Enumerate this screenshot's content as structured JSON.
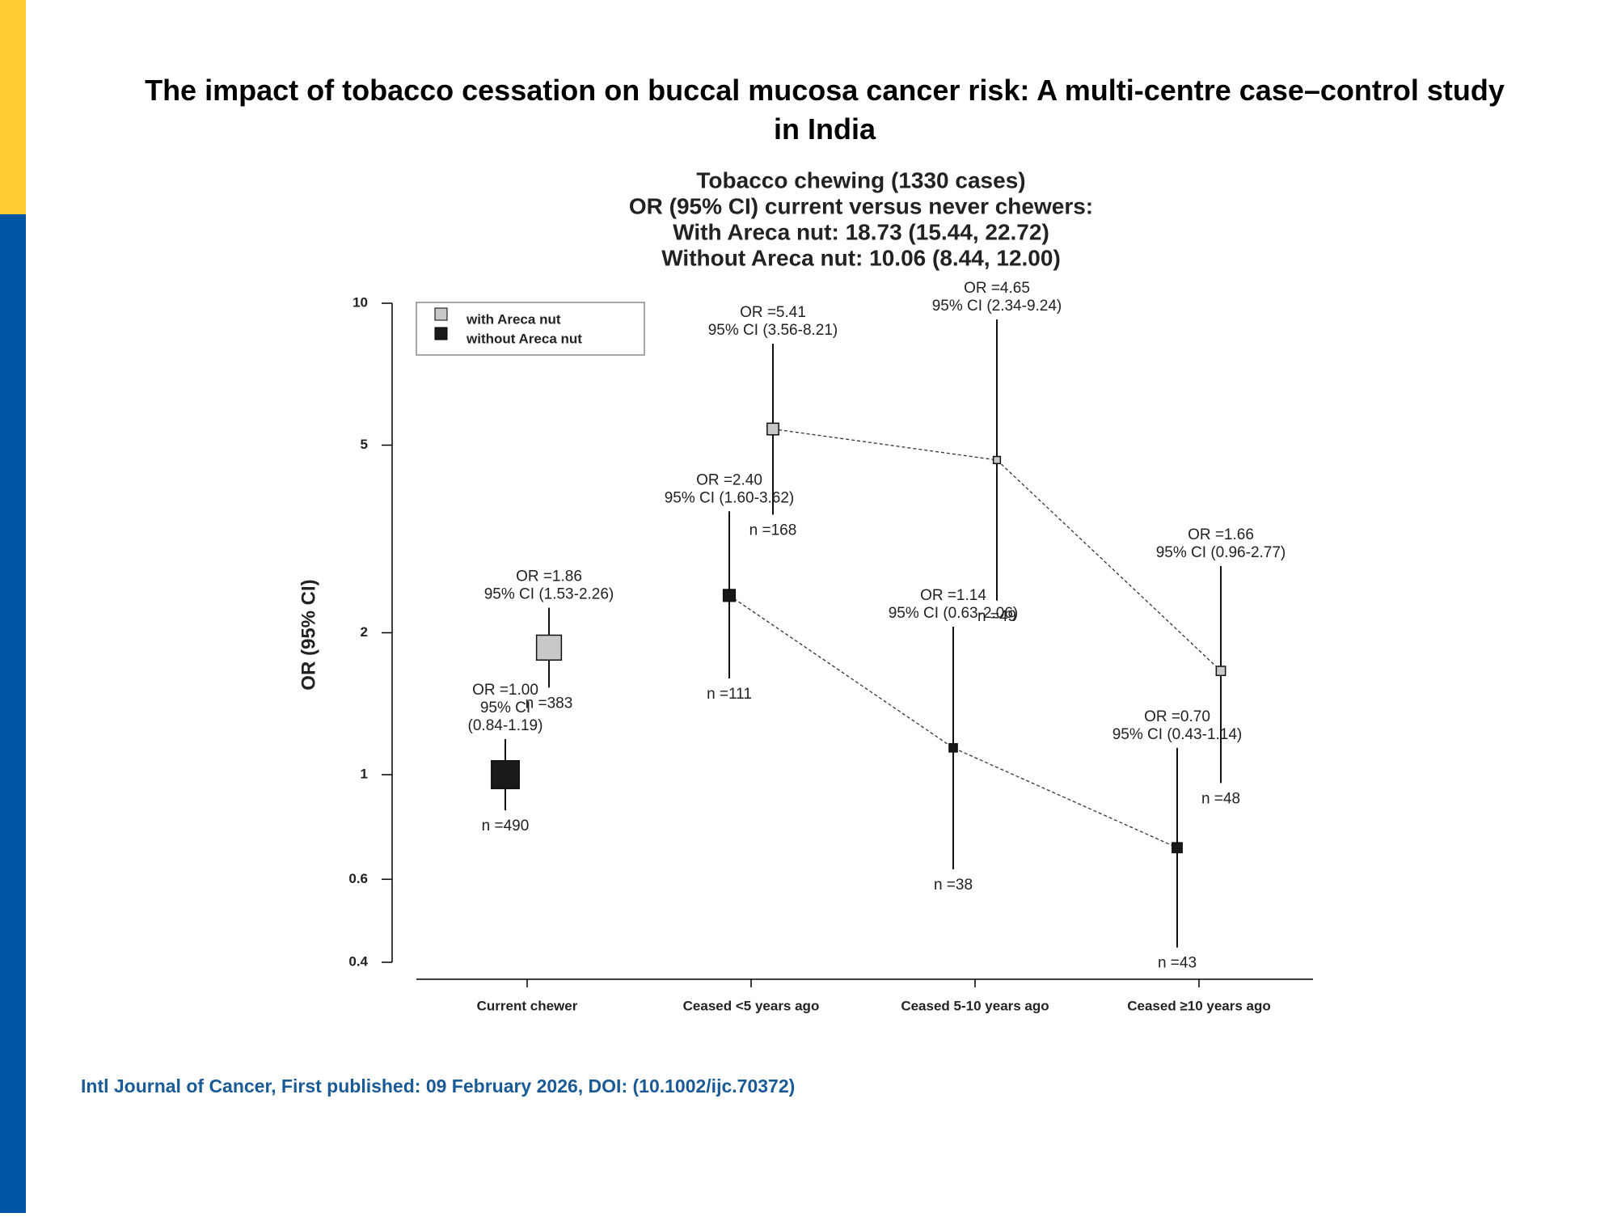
{
  "chart_data": {
    "type": "errorbar",
    "title": "The impact of tobacco cessation on buccal mucosa cancer risk: A multi-centre case–control study in India",
    "subtitle": [
      "Tobacco chewing (1330 cases)",
      "OR (95% CI) current versus never chewers:",
      "With Areca nut: 18.73 (15.44, 22.72)",
      "Without Areca nut: 10.06 (8.44, 12.00)"
    ],
    "y_label": "OR (95% CI)",
    "categories": [
      "Current chewer",
      "Ceased <5 years ago",
      "Ceased 5-10 years ago",
      "Ceased ≥10 years ago"
    ],
    "log_scale": true,
    "ylim": [
      0.4,
      10
    ],
    "yticks": [
      0.4,
      0.6,
      1,
      2,
      5,
      10
    ],
    "legend": "top-left",
    "series": [
      {
        "name": "with Areca nut",
        "color": "#c8c8c8",
        "values": [
          1.86,
          5.41,
          4.65,
          1.66
        ],
        "lower": [
          1.53,
          3.56,
          2.34,
          0.96
        ],
        "upper": [
          2.26,
          8.21,
          9.24,
          2.77
        ],
        "value_labels": [
          "OR =1.86",
          "OR =5.41",
          "OR =4.65",
          "OR =1.66"
        ],
        "ci_labels": [
          [
            "95% CI (1.53-2.26)"
          ],
          [
            "95% CI (3.56-8.21)"
          ],
          [
            "95% CI (2.34-9.24)"
          ],
          [
            "95% CI (0.96-2.77)"
          ]
        ],
        "n_labels": [
          "n =383",
          "n =168",
          "n =49",
          "n =48"
        ]
      },
      {
        "name": "without Areca nut",
        "color": "#1a1a1a",
        "values": [
          1.0,
          2.4,
          1.14,
          0.7
        ],
        "lower": [
          0.84,
          1.6,
          0.63,
          0.43
        ],
        "upper": [
          1.19,
          3.62,
          2.06,
          1.14
        ],
        "value_labels": [
          "OR =1.00",
          "OR =2.40",
          "OR =1.14",
          "OR =0.70"
        ],
        "ci_labels": [
          [
            "95% CI",
            "(0.84-1.19)"
          ],
          [
            "95% CI (1.60-3.62)"
          ],
          [
            "95% CI (0.63-2.06)"
          ],
          [
            "95% CI (0.43-1.14)"
          ]
        ],
        "n_labels": [
          "n =490",
          "n =111",
          "n =38",
          "n =43"
        ]
      }
    ]
  },
  "footer": "Intl Journal of Cancer, First published: 09 February 2026, DOI: (10.1002/ijc.70372)"
}
